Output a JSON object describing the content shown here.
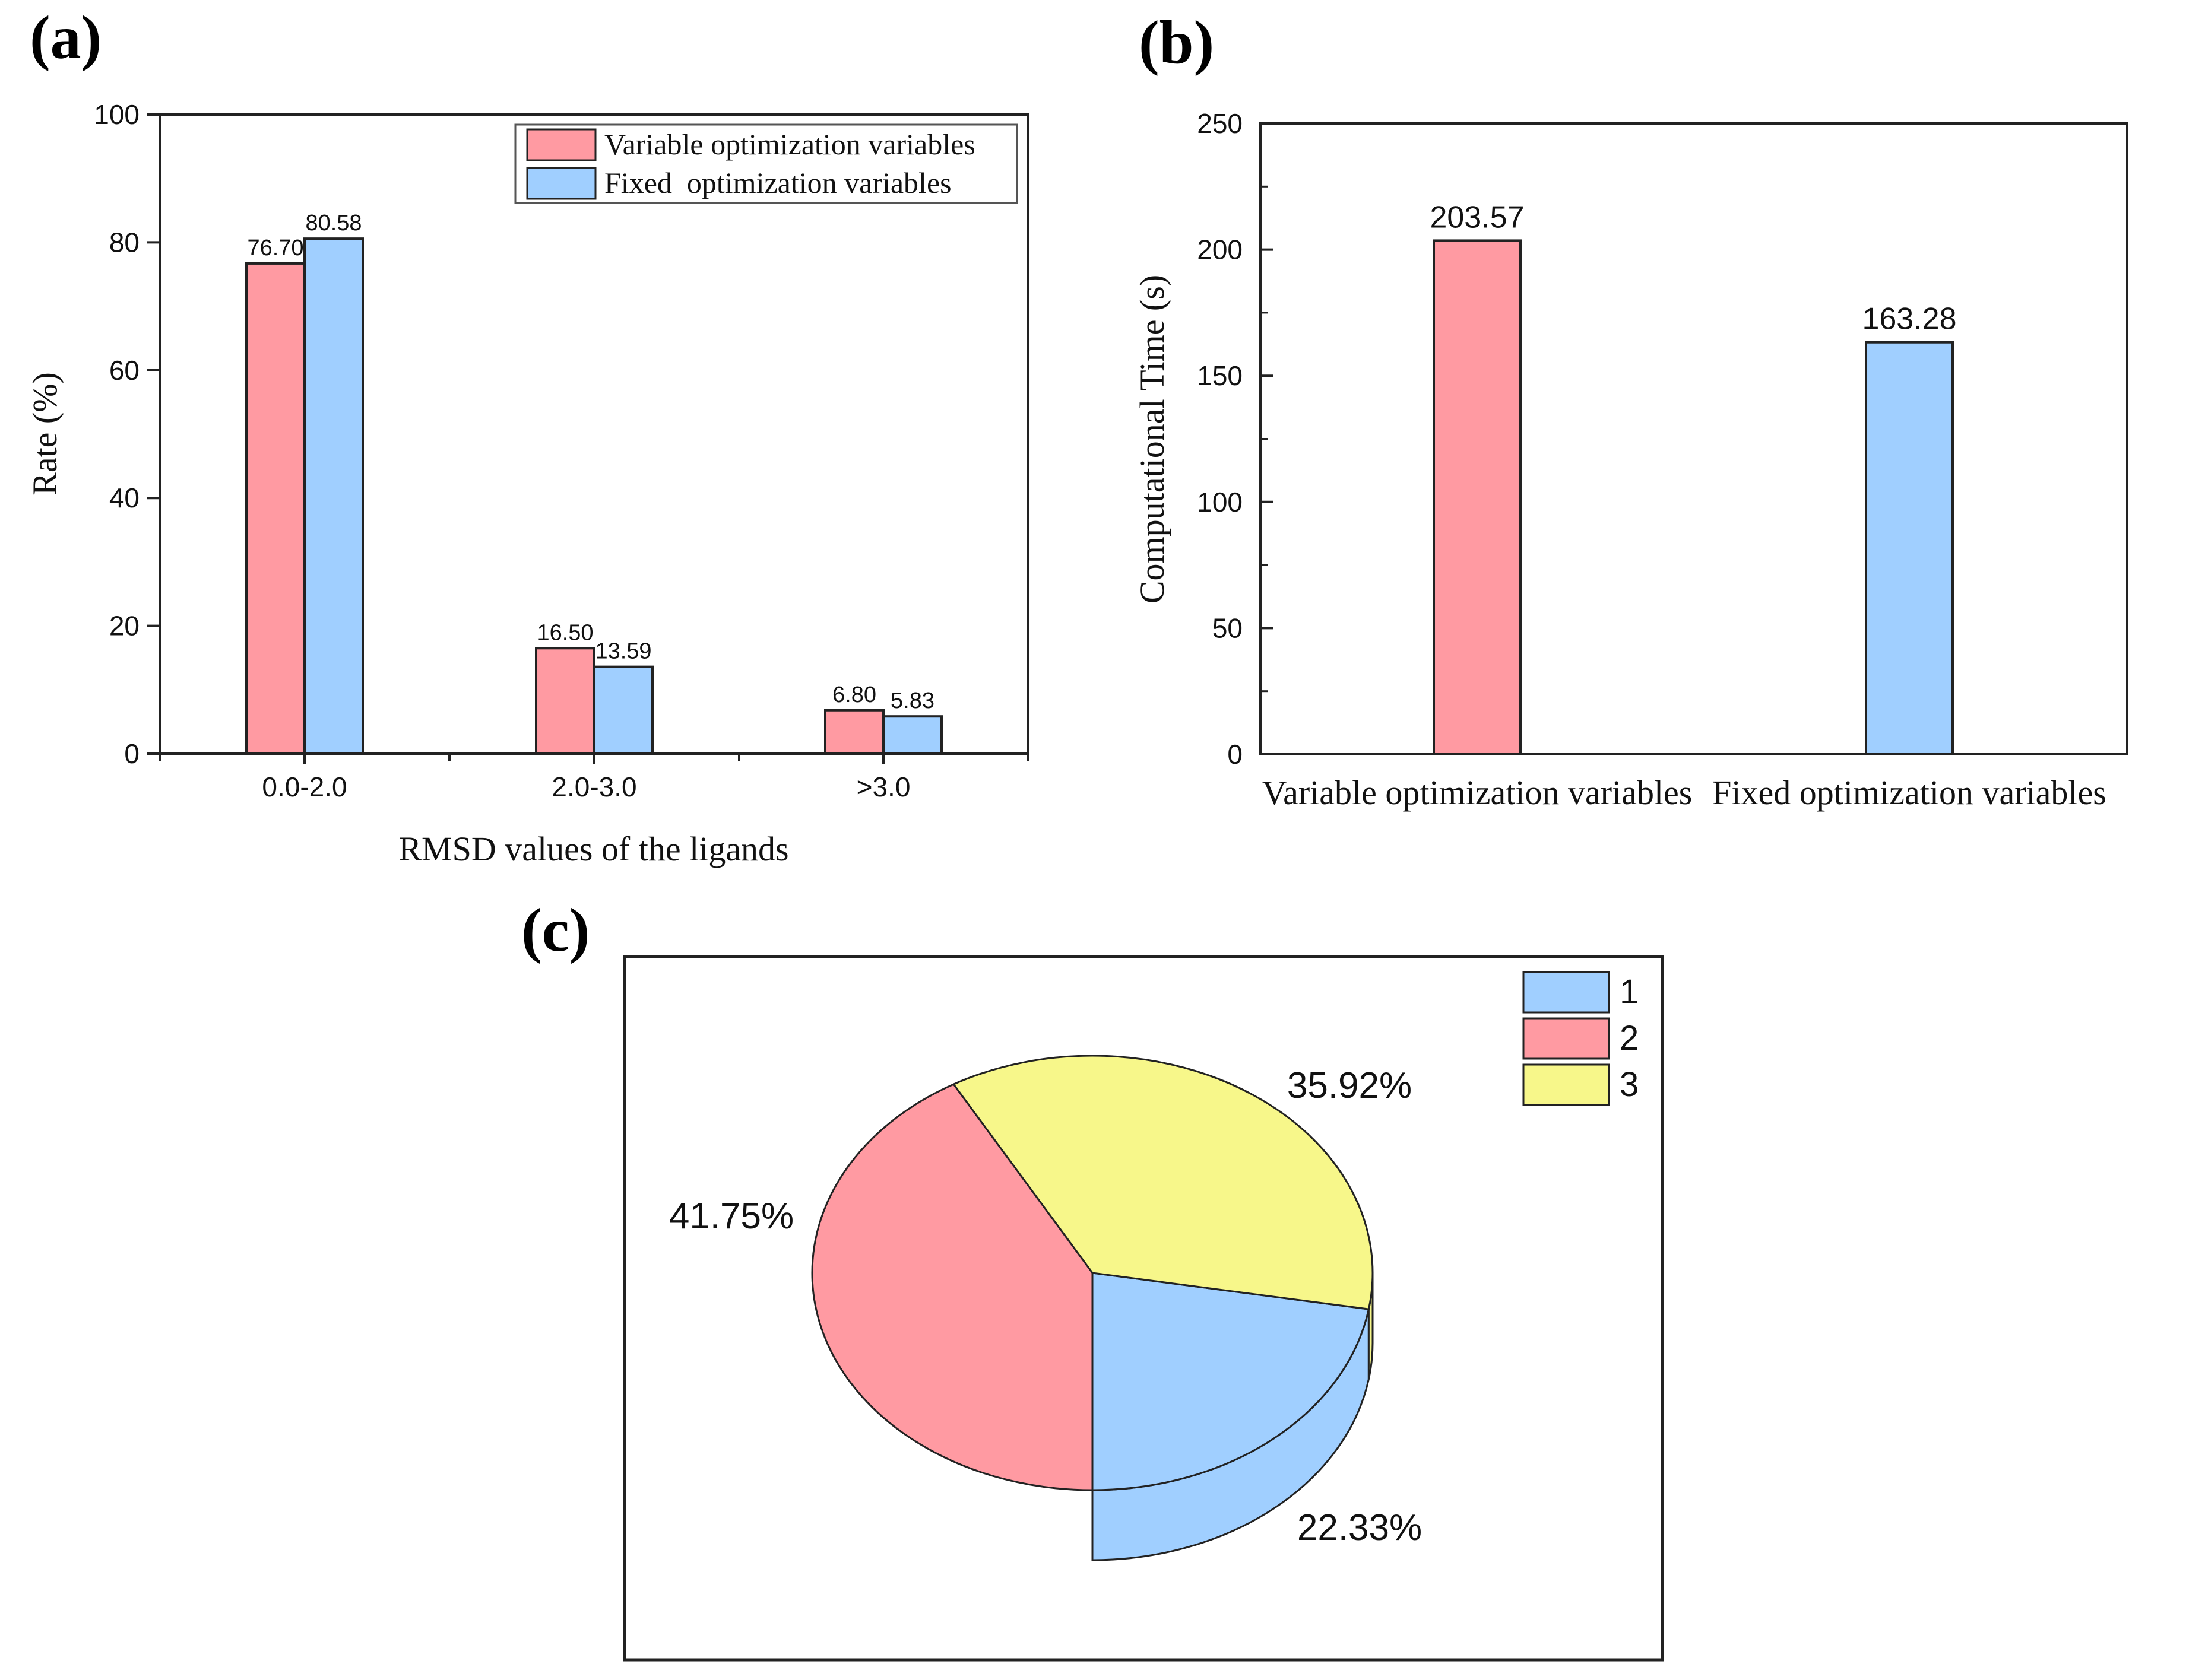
{
  "colors": {
    "pink": "#FF9AA2",
    "blue": "#A0CFFF",
    "yellow": "#F7F78A",
    "stroke": "#222222"
  },
  "chart_data": [
    {
      "panel": "(a)",
      "type": "bar",
      "categories": [
        "0.0-2.0",
        "2.0-3.0",
        ">3.0"
      ],
      "series": [
        {
          "name": "Variable optimization variables",
          "color": "pink",
          "values": [
            76.7,
            16.5,
            6.8
          ],
          "labels": [
            "76.70",
            "16.50",
            "6.80"
          ]
        },
        {
          "name": "Fixed  optimization variables",
          "color": "blue",
          "values": [
            80.58,
            13.59,
            5.83
          ],
          "labels": [
            "80.58",
            "13.59",
            "5.83"
          ]
        }
      ],
      "xlabel": "RMSD values of the ligands",
      "ylabel": "Rate (%)",
      "ylim": [
        0,
        100
      ],
      "yticks": [
        0,
        20,
        40,
        60,
        80,
        100
      ],
      "legend": "top-right"
    },
    {
      "panel": "(b)",
      "type": "bar",
      "categories": [
        "Variable optimization variables",
        "Fixed optimization variables"
      ],
      "values": [
        203.57,
        163.28
      ],
      "labels": [
        "203.57",
        "163.28"
      ],
      "colors": [
        "pink",
        "blue"
      ],
      "xlabel": "",
      "ylabel": "Computational Time (s)",
      "ylim": [
        0,
        250
      ],
      "yticks": [
        0,
        50,
        100,
        150,
        200,
        250
      ]
    },
    {
      "panel": "(c)",
      "type": "pie",
      "slices": [
        {
          "name": "1",
          "value": 22.33,
          "label": "22.33%",
          "color": "blue"
        },
        {
          "name": "2",
          "value": 41.75,
          "label": "41.75%",
          "color": "pink"
        },
        {
          "name": "3",
          "value": 35.92,
          "label": "35.92%",
          "color": "yellow"
        }
      ],
      "legend": "top-right"
    }
  ]
}
